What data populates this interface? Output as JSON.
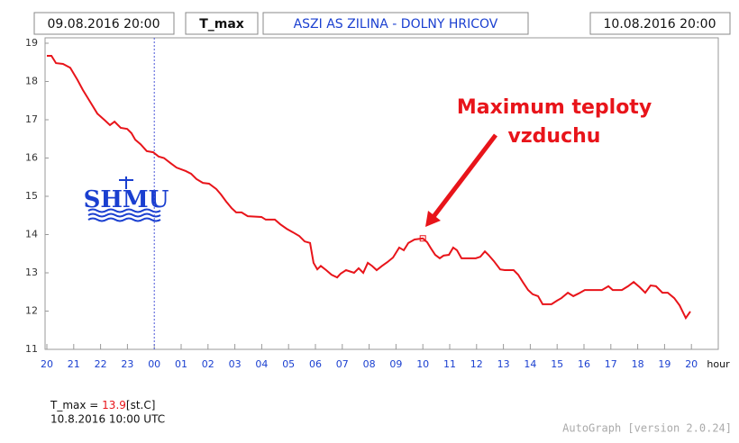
{
  "chart_data": {
    "type": "line",
    "header": {
      "start": "09.08.2016 20:00",
      "variable": "T_max",
      "station": "ASZI AS ZILINA - DOLNY HRICOV",
      "end": "10.08.2016 20:00"
    },
    "x_label": "hour",
    "xlim": [
      0,
      25
    ],
    "xticks": [
      {
        "value": 0,
        "label": "20"
      },
      {
        "value": 1,
        "label": "21"
      },
      {
        "value": 2,
        "label": "22"
      },
      {
        "value": 3,
        "label": "23"
      },
      {
        "value": 4,
        "label": "00"
      },
      {
        "value": 5,
        "label": "01"
      },
      {
        "value": 6,
        "label": "02"
      },
      {
        "value": 7,
        "label": "03"
      },
      {
        "value": 8,
        "label": "04"
      },
      {
        "value": 9,
        "label": "05"
      },
      {
        "value": 10,
        "label": "06"
      },
      {
        "value": 11,
        "label": "07"
      },
      {
        "value": 12,
        "label": "08"
      },
      {
        "value": 13,
        "label": "09"
      },
      {
        "value": 14,
        "label": "10"
      },
      {
        "value": 15,
        "label": "11"
      },
      {
        "value": 16,
        "label": "12"
      },
      {
        "value": 17,
        "label": "13"
      },
      {
        "value": 18,
        "label": "14"
      },
      {
        "value": 19,
        "label": "15"
      },
      {
        "value": 20,
        "label": "16"
      },
      {
        "value": 21,
        "label": "17"
      },
      {
        "value": 22,
        "label": "18"
      },
      {
        "value": 23,
        "label": "19"
      },
      {
        "value": 24,
        "label": "20"
      }
    ],
    "ylim": [
      11,
      19
    ],
    "yticks": [
      11,
      12,
      13,
      14,
      15,
      16,
      17,
      18,
      19
    ],
    "vlines": [
      4
    ],
    "color": "#e8141a",
    "x": [
      0,
      0.17,
      0.34,
      0.6,
      0.87,
      1.14,
      1.34,
      1.61,
      1.88,
      2.15,
      2.35,
      2.52,
      2.75,
      2.99,
      3.15,
      3.29,
      3.49,
      3.72,
      3.96,
      4.16,
      4.36,
      4.6,
      4.83,
      5.17,
      5.37,
      5.57,
      5.81,
      6.04,
      6.31,
      6.48,
      6.68,
      6.88,
      7.05,
      7.25,
      7.48,
      7.99,
      8.15,
      8.49,
      8.69,
      8.93,
      9.16,
      9.4,
      9.6,
      9.8,
      9.93,
      10.07,
      10.2,
      10.4,
      10.6,
      10.81,
      10.94,
      11.14,
      11.44,
      11.61,
      11.78,
      11.95,
      12.11,
      12.28,
      12.48,
      12.68,
      12.89,
      13.12,
      13.29,
      13.46,
      13.69,
      14,
      14.16,
      14.3,
      14.46,
      14.63,
      14.77,
      14.97,
      15.13,
      15.27,
      15.44,
      15.97,
      16.14,
      16.31,
      16.44,
      16.64,
      16.88,
      17.05,
      17.38,
      17.55,
      17.72,
      17.92,
      18.09,
      18.29,
      18.46,
      18.79,
      18.99,
      19.16,
      19.4,
      19.6,
      19.8,
      20.03,
      20.67,
      20.91,
      21.07,
      21.41,
      21.64,
      21.85,
      22.08,
      22.28,
      22.48,
      22.68,
      22.92,
      23.12,
      23.36,
      23.56,
      23.79,
      23.96
    ],
    "values": [
      18.67,
      18.67,
      18.48,
      18.46,
      18.36,
      18.04,
      17.78,
      17.47,
      17.16,
      16.99,
      16.86,
      16.95,
      16.79,
      16.76,
      16.65,
      16.48,
      16.36,
      16.18,
      16.15,
      16.04,
      16.0,
      15.87,
      15.75,
      15.66,
      15.59,
      15.45,
      15.35,
      15.33,
      15.19,
      15.05,
      14.86,
      14.69,
      14.58,
      14.58,
      14.48,
      14.46,
      14.39,
      14.39,
      14.27,
      14.15,
      14.06,
      13.96,
      13.82,
      13.78,
      13.26,
      13.09,
      13.18,
      13.07,
      12.95,
      12.88,
      12.98,
      13.07,
      13.0,
      13.12,
      13.0,
      13.26,
      13.18,
      13.07,
      13.18,
      13.28,
      13.4,
      13.66,
      13.59,
      13.78,
      13.87,
      13.9,
      13.8,
      13.64,
      13.47,
      13.38,
      13.45,
      13.47,
      13.66,
      13.59,
      13.38,
      13.38,
      13.42,
      13.56,
      13.47,
      13.31,
      13.09,
      13.07,
      13.07,
      12.95,
      12.76,
      12.55,
      12.44,
      12.39,
      12.18,
      12.18,
      12.27,
      12.34,
      12.48,
      12.39,
      12.46,
      12.55,
      12.55,
      12.65,
      12.55,
      12.55,
      12.65,
      12.76,
      12.62,
      12.48,
      12.67,
      12.65,
      12.48,
      12.48,
      12.34,
      12.15,
      11.82,
      11.99
    ],
    "highlight": {
      "x": 14,
      "y": 13.9
    },
    "annotation": [
      "Maximum teploty",
      "vzduchu"
    ],
    "logo": "SHMU",
    "readout": {
      "name": "T_max",
      "sep": " = ",
      "unit": "[st.C]",
      "time": "10.8.2016 10:00 UTC"
    },
    "footer": "AutoGraph [version 2.0.24]"
  }
}
